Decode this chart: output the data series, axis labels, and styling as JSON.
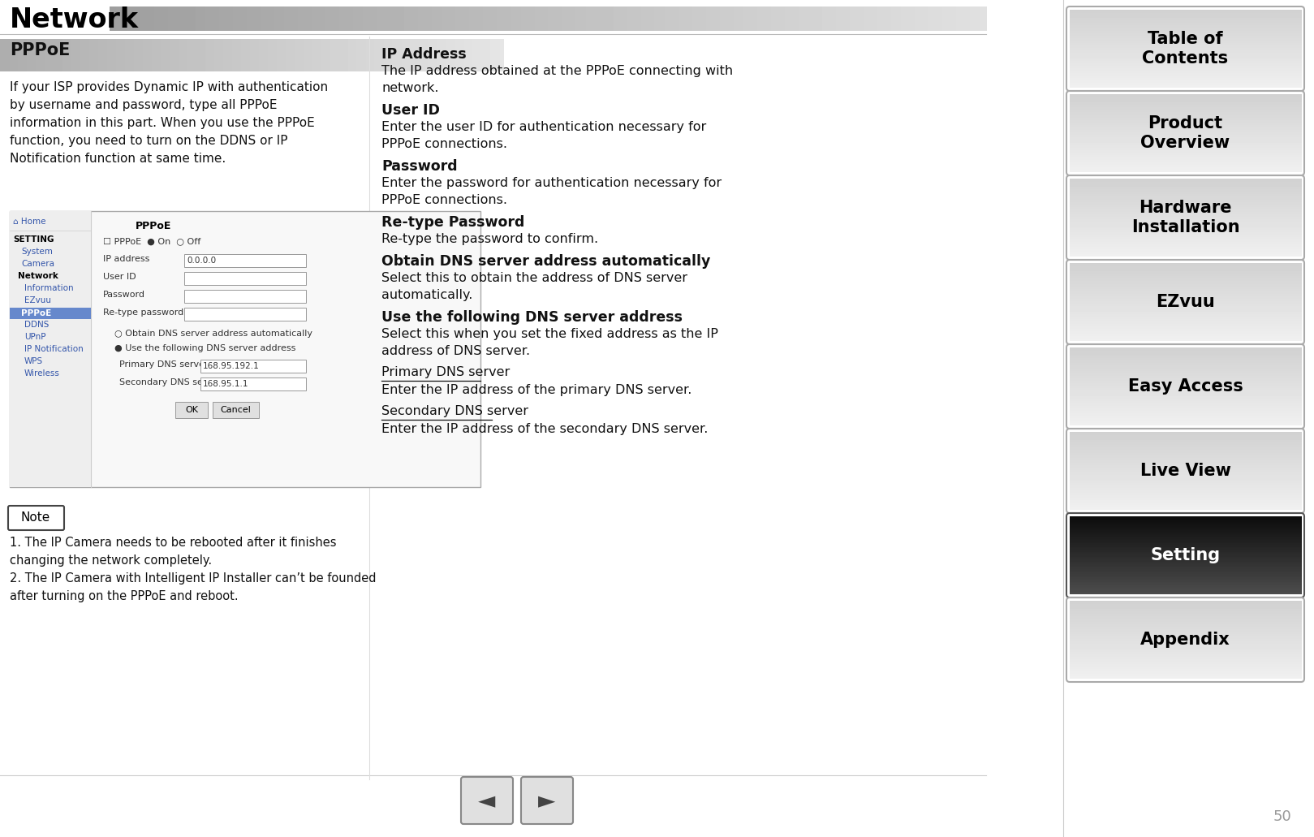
{
  "title": "Network",
  "page_number": "50",
  "section_title": "PPPoE",
  "left_text_intro": "If your ISP provides Dynamic IP with authentication\nby username and password, type all PPPoE\ninformation in this part. When you use the PPPoE\nfunction, you need to turn on the DDNS or IP\nNotification function at same time.",
  "note_label": "Note",
  "note_text": "1. The IP Camera needs to be rebooted after it finishes\nchanging the network completely.\n2. The IP Camera with Intelligent IP Installer can’t be founded\nafter turning on the PPPoE and reboot.",
  "right_section_items": [
    {
      "label": "IP Address",
      "bold": true,
      "text": "The IP address obtained at the PPPoE connecting with\nnetwork."
    },
    {
      "label": "User ID",
      "bold": true,
      "text": "Enter the user ID for authentication necessary for\nPPPoE connections."
    },
    {
      "label": "Password",
      "bold": true,
      "text": "Enter the password for authentication necessary for\nPPPoE connections."
    },
    {
      "label": "Re-type Password",
      "bold": true,
      "text": "Re-type the password to confirm."
    },
    {
      "label": "Obtain DNS server address automatically",
      "bold": true,
      "text": "Select this to obtain the address of DNS server\nautomatically."
    },
    {
      "label": "Use the following DNS server address",
      "bold": true,
      "text": "Select this when you set the fixed address as the IP\naddress of DNS server."
    },
    {
      "label": "Primary DNS server",
      "bold": false,
      "underline": true,
      "text": "Enter the IP address of the primary DNS server."
    },
    {
      "label": "Secondary DNS server",
      "bold": false,
      "underline": true,
      "text": "Enter the IP address of the secondary DNS server."
    }
  ],
  "nav_buttons": [
    {
      "label": "Table of\nContents",
      "active": false
    },
    {
      "label": "Product\nOverview",
      "active": false
    },
    {
      "label": "Hardware\nInstallation",
      "active": false
    },
    {
      "label": "EZvuu",
      "active": false
    },
    {
      "label": "Easy Access",
      "active": false
    },
    {
      "label": "Live View",
      "active": false
    },
    {
      "label": "Setting",
      "active": true
    },
    {
      "label": "Appendix",
      "active": false
    }
  ],
  "bg_color": "#ffffff"
}
